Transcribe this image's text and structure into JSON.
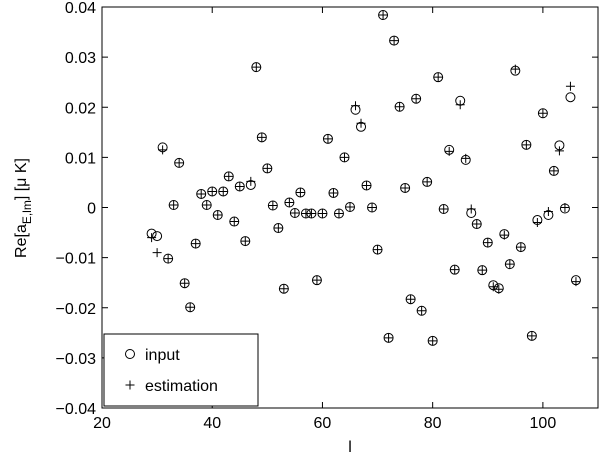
{
  "chart_data": {
    "type": "scatter",
    "xlabel": "l",
    "ylabel": "Re[a",
    "ylabel_sub": "E,lm",
    "ylabel_suffix": "] [μ K]",
    "xlim": [
      20,
      110
    ],
    "ylim": [
      -0.04,
      0.04
    ],
    "xticks": [
      20,
      40,
      60,
      80,
      100
    ],
    "xtick_labels": [
      "20",
      "40",
      "60",
      "80",
      "100"
    ],
    "yticks": [
      -0.04,
      -0.03,
      -0.02,
      -0.01,
      0,
      0.01,
      0.02,
      0.03,
      0.04
    ],
    "ytick_labels": [
      "−0.04",
      "−0.03",
      "−0.02",
      "−0.01",
      "0",
      "0.01",
      "0.02",
      "0.03",
      "0.04"
    ],
    "legend_position": "bottom-left",
    "series": [
      {
        "name": "input",
        "marker": "circle",
        "points": [
          [
            29,
            -0.0052
          ],
          [
            30,
            -0.0057
          ],
          [
            31,
            0.012
          ],
          [
            32,
            -0.0102
          ],
          [
            33,
            0.0005
          ],
          [
            34,
            0.0089
          ],
          [
            35,
            -0.0151
          ],
          [
            36,
            -0.0199
          ],
          [
            37,
            -0.0072
          ],
          [
            38,
            0.0027
          ],
          [
            39,
            0.0005
          ],
          [
            40,
            0.0032
          ],
          [
            41,
            -0.0015
          ],
          [
            42,
            0.0032
          ],
          [
            43,
            0.0062
          ],
          [
            44,
            -0.0028
          ],
          [
            45,
            0.0042
          ],
          [
            46,
            -0.0067
          ],
          [
            47,
            0.0045
          ],
          [
            48,
            0.028
          ],
          [
            49,
            0.014
          ],
          [
            50,
            0.0078
          ],
          [
            51,
            0.0004
          ],
          [
            52,
            -0.0041
          ],
          [
            53,
            -0.0162
          ],
          [
            54,
            0.001
          ],
          [
            55,
            -0.0011
          ],
          [
            56,
            0.003
          ],
          [
            57,
            -0.0012
          ],
          [
            58,
            -0.0012
          ],
          [
            59,
            -0.0145
          ],
          [
            60,
            -0.0012
          ],
          [
            61,
            0.0137
          ],
          [
            62,
            0.0029
          ],
          [
            63,
            -0.0012
          ],
          [
            64,
            0.01
          ],
          [
            65,
            0.0001
          ],
          [
            66,
            0.0195
          ],
          [
            67,
            0.0161
          ],
          [
            68,
            0.0044
          ],
          [
            69,
            0.0
          ],
          [
            70,
            -0.0084
          ],
          [
            71,
            0.0384
          ],
          [
            72,
            -0.026
          ],
          [
            73,
            0.0333
          ],
          [
            74,
            0.0201
          ],
          [
            75,
            0.0039
          ],
          [
            76,
            -0.0183
          ],
          [
            77,
            0.0217
          ],
          [
            78,
            -0.0206
          ],
          [
            79,
            0.0051
          ],
          [
            80,
            -0.0266
          ],
          [
            81,
            0.026
          ],
          [
            82,
            -0.0003
          ],
          [
            83,
            0.0115
          ],
          [
            84,
            -0.0124
          ],
          [
            85,
            0.0213
          ],
          [
            86,
            0.0095
          ],
          [
            87,
            -0.0011
          ],
          [
            88,
            -0.0033
          ],
          [
            89,
            -0.0125
          ],
          [
            90,
            -0.007
          ],
          [
            91,
            -0.0155
          ],
          [
            92,
            -0.0161
          ],
          [
            93,
            -0.0053
          ],
          [
            94,
            -0.0113
          ],
          [
            95,
            0.0273
          ],
          [
            96,
            -0.0079
          ],
          [
            97,
            0.0125
          ],
          [
            98,
            -0.0256
          ],
          [
            99,
            -0.0025
          ],
          [
            100,
            0.0188
          ],
          [
            101,
            -0.0015
          ],
          [
            102,
            0.0073
          ],
          [
            103,
            0.0124
          ],
          [
            104,
            -0.0002
          ],
          [
            105,
            0.022
          ],
          [
            106,
            -0.0145
          ]
        ]
      },
      {
        "name": "estimation",
        "marker": "plus",
        "points": [
          [
            29,
            -0.006
          ],
          [
            30,
            -0.009
          ],
          [
            31,
            0.0115
          ],
          [
            32,
            -0.0102
          ],
          [
            33,
            0.0005
          ],
          [
            34,
            0.0089
          ],
          [
            35,
            -0.0151
          ],
          [
            36,
            -0.0199
          ],
          [
            37,
            -0.0072
          ],
          [
            38,
            0.0027
          ],
          [
            39,
            0.0005
          ],
          [
            40,
            0.0032
          ],
          [
            41,
            -0.0015
          ],
          [
            42,
            0.0032
          ],
          [
            43,
            0.0062
          ],
          [
            44,
            -0.0028
          ],
          [
            45,
            0.0042
          ],
          [
            46,
            -0.0067
          ],
          [
            47,
            0.0052
          ],
          [
            48,
            0.028
          ],
          [
            49,
            0.014
          ],
          [
            50,
            0.0078
          ],
          [
            51,
            0.0004
          ],
          [
            52,
            -0.0041
          ],
          [
            53,
            -0.0162
          ],
          [
            54,
            0.001
          ],
          [
            55,
            -0.0011
          ],
          [
            56,
            0.003
          ],
          [
            57,
            -0.0012
          ],
          [
            58,
            -0.0012
          ],
          [
            59,
            -0.0145
          ],
          [
            60,
            -0.0012
          ],
          [
            61,
            0.0137
          ],
          [
            62,
            0.0029
          ],
          [
            63,
            -0.0012
          ],
          [
            64,
            0.01
          ],
          [
            65,
            0.0001
          ],
          [
            66,
            0.0203
          ],
          [
            67,
            0.0168
          ],
          [
            68,
            0.0044
          ],
          [
            69,
            0.0
          ],
          [
            70,
            -0.0084
          ],
          [
            71,
            0.0384
          ],
          [
            72,
            -0.026
          ],
          [
            73,
            0.0333
          ],
          [
            74,
            0.0201
          ],
          [
            75,
            0.0039
          ],
          [
            76,
            -0.0183
          ],
          [
            77,
            0.0217
          ],
          [
            78,
            -0.0206
          ],
          [
            79,
            0.0051
          ],
          [
            80,
            -0.0266
          ],
          [
            81,
            0.026
          ],
          [
            82,
            -0.0003
          ],
          [
            83,
            0.0112
          ],
          [
            84,
            -0.0124
          ],
          [
            85,
            0.0205
          ],
          [
            86,
            0.0098
          ],
          [
            87,
            -0.0003
          ],
          [
            88,
            -0.0033
          ],
          [
            89,
            -0.0125
          ],
          [
            90,
            -0.007
          ],
          [
            91,
            -0.0158
          ],
          [
            92,
            -0.0163
          ],
          [
            93,
            -0.0055
          ],
          [
            94,
            -0.0113
          ],
          [
            95,
            0.0276
          ],
          [
            96,
            -0.0079
          ],
          [
            97,
            0.0125
          ],
          [
            98,
            -0.0256
          ],
          [
            99,
            -0.003
          ],
          [
            100,
            0.0188
          ],
          [
            101,
            -0.0008
          ],
          [
            102,
            0.0073
          ],
          [
            103,
            0.0113
          ],
          [
            104,
            0.0
          ],
          [
            105,
            0.0242
          ],
          [
            106,
            -0.0148
          ]
        ]
      }
    ]
  }
}
